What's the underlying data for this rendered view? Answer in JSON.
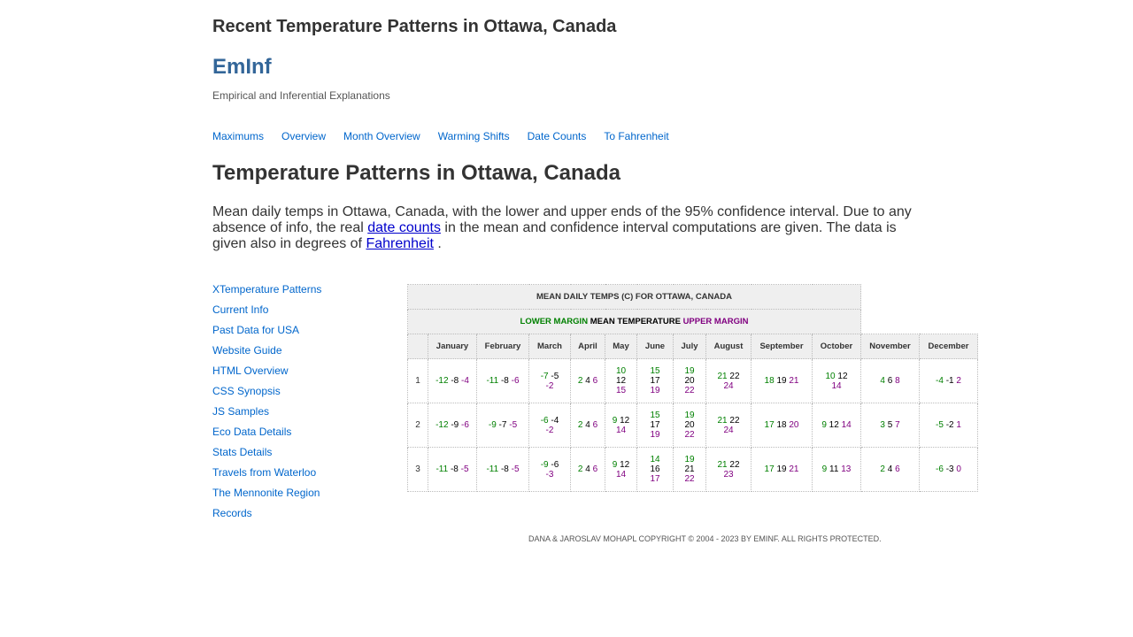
{
  "site": {
    "title": "Recent Temperature Patterns in Ottawa, Canada",
    "brand": "EmInf",
    "tagline": "Empirical and Inferential Explanations"
  },
  "topnav": [
    "Maximums",
    "Overview",
    "Month Overview",
    "Warming Shifts",
    "Date Counts",
    "To Fahrenheit"
  ],
  "main": {
    "heading": "Temperature Patterns in Ottawa, Canada",
    "intro_a": "Mean daily temps in Ottawa, Canada, with the lower and upper ends of the 95% confidence interval. Due to any absence of info, the real ",
    "intro_link1": "date counts",
    "intro_b": " in the mean and confidence interval computations are given. The data is given also in degrees of ",
    "intro_link2": "Fahrenheit",
    "intro_c": " ."
  },
  "sidenav": [
    "XTemperature Patterns",
    "Current Info",
    "Past Data for USA",
    "Website Guide",
    "HTML Overview",
    "CSS Synopsis",
    "JS Samples",
    "Eco Data Details",
    "Stats Details",
    "Travels from Waterloo",
    "The Mennonite Region",
    "Records"
  ],
  "table": {
    "caption": "MEAN DAILY TEMPS (C) FOR OTTAWA, CANADA",
    "legend_lower": "LOWER MARGIN",
    "legend_mean": "MEAN TEMPERATURE",
    "legend_upper": "UPPER MARGIN",
    "months": [
      "January",
      "February",
      "March",
      "April",
      "May",
      "June",
      "July",
      "August",
      "September",
      "October",
      "November",
      "December"
    ],
    "rows": [
      {
        "day": "1",
        "cells": [
          {
            "lo": "-12",
            "m": "-8",
            "hi": "-4",
            "w": 1
          },
          {
            "lo": "-11",
            "m": "-8",
            "hi": "-6",
            "w": 1
          },
          {
            "lo": "-7",
            "m": "-5",
            "hi": "-2",
            "w": 2
          },
          {
            "lo": "2",
            "m": "4",
            "hi": "6",
            "w": 1
          },
          {
            "lo": "10",
            "m": "12",
            "hi": "15",
            "w": 3
          },
          {
            "lo": "15",
            "m": "17",
            "hi": "19",
            "w": 3
          },
          {
            "lo": "19",
            "m": "20",
            "hi": "22",
            "w": 3
          },
          {
            "lo": "21",
            "m": "22",
            "hi": "24",
            "w": 2
          },
          {
            "lo": "18",
            "m": "19",
            "hi": "21",
            "w": 1
          },
          {
            "lo": "10",
            "m": "12",
            "hi": "14",
            "w": 2
          },
          {
            "lo": "4",
            "m": "6",
            "hi": "8",
            "w": 1
          },
          {
            "lo": "-4",
            "m": "-1",
            "hi": "2",
            "w": 1
          }
        ]
      },
      {
        "day": "2",
        "cells": [
          {
            "lo": "-12",
            "m": "-9",
            "hi": "-6",
            "w": 1
          },
          {
            "lo": "-9",
            "m": "-7",
            "hi": "-5",
            "w": 1
          },
          {
            "lo": "-6",
            "m": "-4",
            "hi": "-2",
            "w": 2
          },
          {
            "lo": "2",
            "m": "4",
            "hi": "6",
            "w": 1
          },
          {
            "lo": "9",
            "m": "12",
            "hi": "14",
            "w": 2
          },
          {
            "lo": "15",
            "m": "17",
            "hi": "19",
            "w": 3
          },
          {
            "lo": "19",
            "m": "20",
            "hi": "22",
            "w": 3
          },
          {
            "lo": "21",
            "m": "22",
            "hi": "24",
            "w": 2
          },
          {
            "lo": "17",
            "m": "18",
            "hi": "20",
            "w": 1
          },
          {
            "lo": "9",
            "m": "12",
            "hi": "14",
            "w": 1
          },
          {
            "lo": "3",
            "m": "5",
            "hi": "7",
            "w": 1
          },
          {
            "lo": "-5",
            "m": "-2",
            "hi": "1",
            "w": 1
          }
        ]
      },
      {
        "day": "3",
        "cells": [
          {
            "lo": "-11",
            "m": "-8",
            "hi": "-5",
            "w": 1
          },
          {
            "lo": "-11",
            "m": "-8",
            "hi": "-5",
            "w": 1
          },
          {
            "lo": "-9",
            "m": "-6",
            "hi": "-3",
            "w": 2
          },
          {
            "lo": "2",
            "m": "4",
            "hi": "6",
            "w": 1
          },
          {
            "lo": "9",
            "m": "12",
            "hi": "14",
            "w": 2
          },
          {
            "lo": "14",
            "m": "16",
            "hi": "17",
            "w": 3
          },
          {
            "lo": "19",
            "m": "21",
            "hi": "22",
            "w": 3
          },
          {
            "lo": "21",
            "m": "22",
            "hi": "23",
            "w": 2
          },
          {
            "lo": "17",
            "m": "19",
            "hi": "21",
            "w": 1
          },
          {
            "lo": "9",
            "m": "11",
            "hi": "13",
            "w": 1
          },
          {
            "lo": "2",
            "m": "4",
            "hi": "6",
            "w": 1
          },
          {
            "lo": "-6",
            "m": "-3",
            "hi": "0",
            "w": 1
          }
        ]
      }
    ]
  },
  "footer": "Dana & Jaroslav Mohapl Copyright © 2004 - 2023 by EmInf. All rights protected.",
  "colors": {
    "lower": "#008000",
    "mean": "#000000",
    "upper": "#800080",
    "link": "#0066cc",
    "brand": "#336699"
  }
}
